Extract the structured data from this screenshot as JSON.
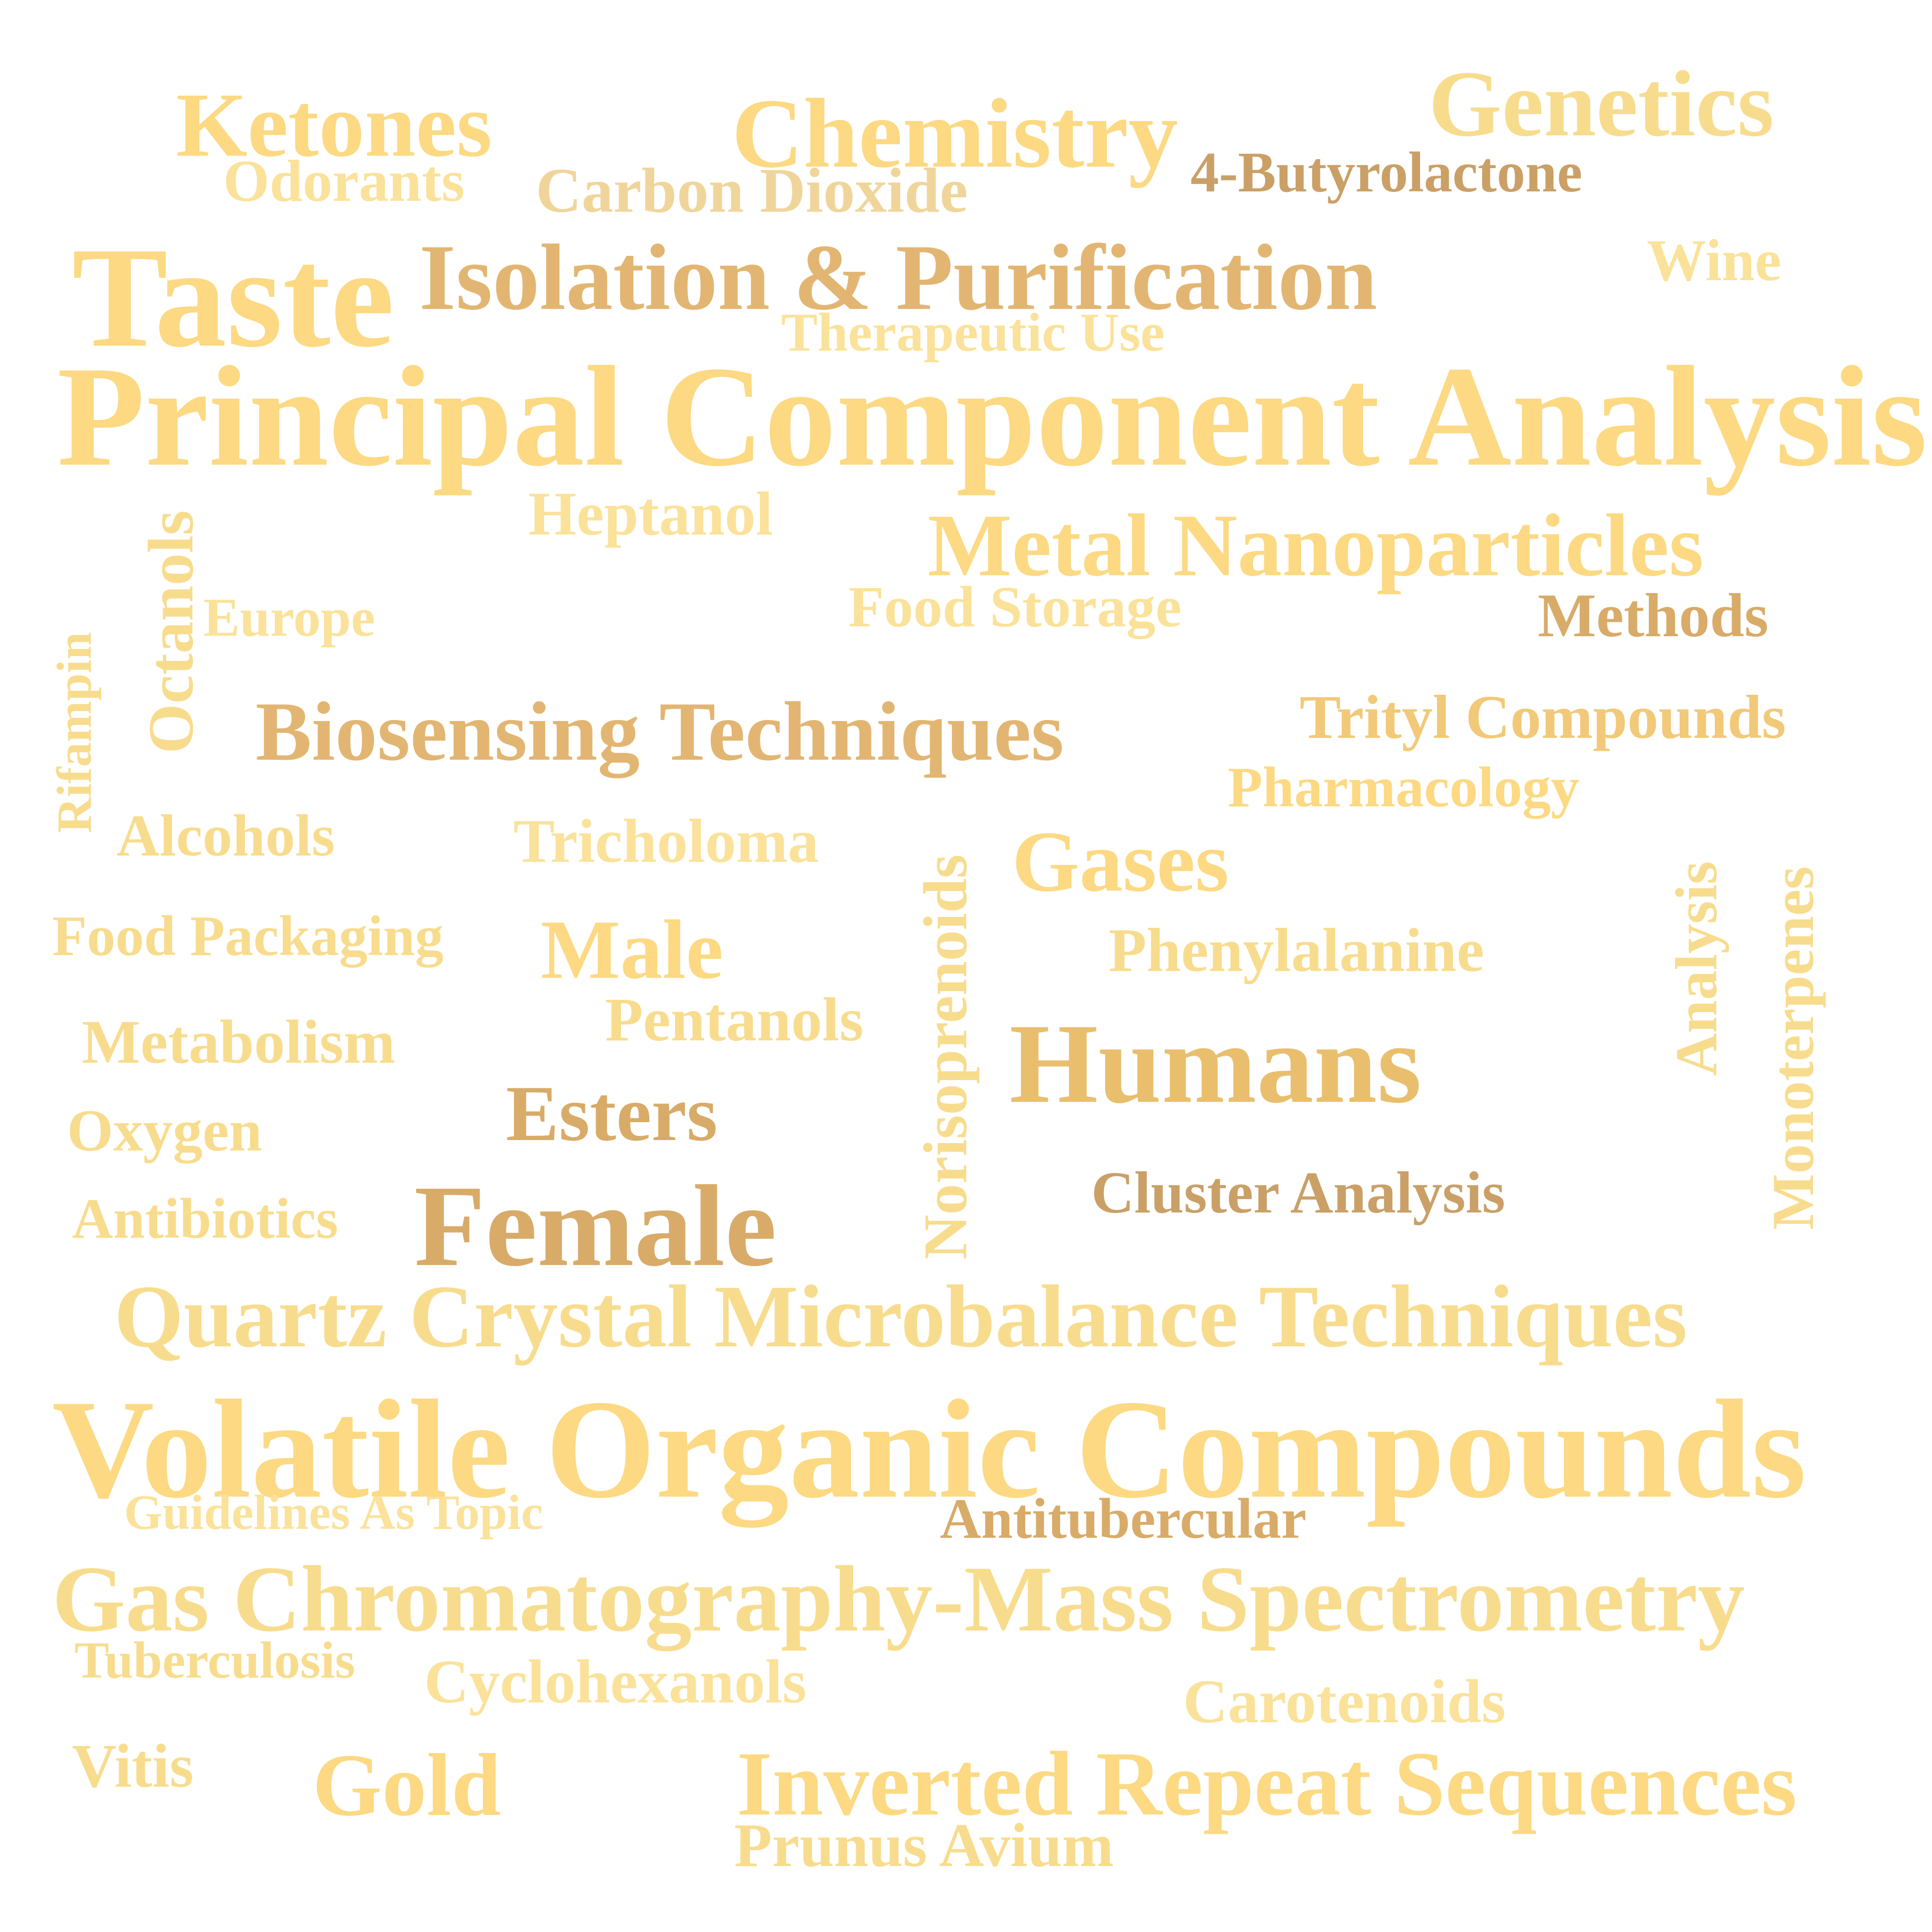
{
  "words": {
    "ketones": "Ketones",
    "chemistry": "Chemistry",
    "genetics": "Genetics",
    "odorants": "Odorants",
    "carbon_dioxide": "Carbon Dioxide",
    "butyrolactone": "4-Butyrolactone",
    "taste": "Taste",
    "isolation_purification": "Isolation & Purification",
    "wine": "Wine",
    "therapeutic_use": "Therapeutic Use",
    "principal_component_analysis": "Principal Component Analysis",
    "heptanol": "Heptanol",
    "metal_nanoparticles": "Metal Nanoparticles",
    "octanols": "Octanols",
    "europe": "Europe",
    "food_storage": "Food Storage",
    "methods": "Methods",
    "rifampin": "Rifampin",
    "biosensing_techniques": "Biosensing Techniques",
    "trityl_compounds": "Trityl Compounds",
    "pharmacology": "Pharmacology",
    "alcohols": "Alcohols",
    "tricholoma": "Tricholoma",
    "norisoprenoids": "Norisoprenoids",
    "gases": "Gases",
    "analysis": "Analysis",
    "monoterpenes": "Monoterpenes",
    "food_packaging": "Food Packaging",
    "male": "Male",
    "phenylalanine": "Phenylalanine",
    "pentanols": "Pentanols",
    "metabolism": "Metabolism",
    "humans": "Humans",
    "esters": "Esters",
    "oxygen": "Oxygen",
    "cluster_analysis": "Cluster Analysis",
    "antibiotics": "Antibiotics",
    "female": "Female",
    "quartz_crystal": "Quartz Crystal Microbalance Techniques",
    "volatile_organic_compounds": "Volatile Organic Compounds",
    "guidelines_as_topic": "Guidelines As Topic",
    "antitubercular": "Antitubercular",
    "gcms": "Gas Chromatography-Mass Spectrometry",
    "tuberculosis": "Tuberculosis",
    "cyclohexanols": "Cyclohexanols",
    "carotenoids": "Carotenoids",
    "vitis": "Vitis",
    "gold": "Gold",
    "inverted_repeat_sequences": "Inverted Repeat Sequences",
    "prunus_avium": "Prunus Avium"
  },
  "colors": {
    "light": "#fbe29a",
    "pale": "#f8dc8e",
    "yellow": "#fcd982",
    "gold": "#f2c978",
    "amber": "#e9bf6e",
    "tan": "#e2b672",
    "bronze": "#d8ab69",
    "dark": "#caa067"
  }
}
